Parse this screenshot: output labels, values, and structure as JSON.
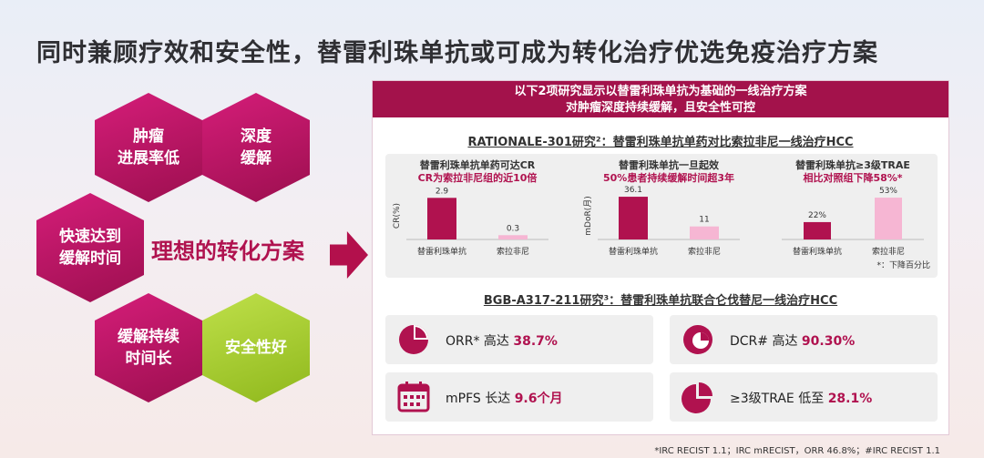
{
  "title": "同时兼顾疗效和安全性，替雷利珠单抗或可成为转化治疗优选免疫治疗方案",
  "hexes": [
    {
      "text": "肿瘤\n进展率低",
      "color": "magenta"
    },
    {
      "text": "深度\n缓解",
      "color": "magenta"
    },
    {
      "text": "快速达到\n缓解时间",
      "color": "magenta"
    },
    {
      "text": "缓解持续\n时间长",
      "color": "magenta"
    },
    {
      "text": "安全性好",
      "color": "green"
    }
  ],
  "ideal_label": "理想的转化方案",
  "banner": {
    "line1": "以下2项研究显示以替雷利珠单抗为基础的一线治疗方案",
    "line2": "对肿瘤深度持续缓解，且安全性可控"
  },
  "study1_title": "RATIONALE-301研究²：替雷利珠单抗单药对比索拉非尼一线治疗HCC",
  "study2_title": "BGB-A317-211研究³：替雷利珠单抗联合仑伐替尼一线治疗HCC",
  "chart_data": [
    {
      "type": "bar",
      "title": "替雷利珠单抗单药可达CR",
      "subtitle": "CR为索拉非尼组的近10倍",
      "ylabel": "CR(%)",
      "categories": [
        "替雷利珠单抗",
        "索拉非尼"
      ],
      "values": [
        2.9,
        0.3
      ],
      "value_labels": [
        "2.9",
        "0.3"
      ],
      "ylim": [
        0,
        3.3
      ]
    },
    {
      "type": "bar",
      "title": "替雷利珠单抗一旦起效",
      "subtitle": "50%患者持续缓解时间超3年",
      "ylabel": "mDoR(月)",
      "categories": [
        "替雷利珠单抗",
        "索拉非尼"
      ],
      "values": [
        36.1,
        11
      ],
      "value_labels": [
        "36.1",
        "11"
      ],
      "ylim": [
        0,
        40
      ]
    },
    {
      "type": "bar",
      "title": "替雷利珠单抗≥3级TRAE",
      "subtitle": "相比对照组下降58%*",
      "ylabel": "",
      "categories": [
        "替雷利珠单抗",
        "索拉非尼"
      ],
      "values": [
        22,
        53
      ],
      "value_labels": [
        "22%",
        "53%"
      ],
      "ylim": [
        0,
        60
      ]
    }
  ],
  "chart_note": "*：下降百分比",
  "stats": [
    {
      "label": "ORR* 高达 ",
      "value": "38.7%",
      "icon": "pie-chart-icon"
    },
    {
      "label": "DCR# 高达 ",
      "value": "90.30%",
      "icon": "donut-chart-icon"
    },
    {
      "label": "mPFS 长达 ",
      "value": "9.6个月",
      "icon": "calendar-icon"
    },
    {
      "label": "≥3级TRAE 低至 ",
      "value": "28.1%",
      "icon": "pie-slice-icon"
    }
  ],
  "footnote": "*IRC RECIST 1.1；IRC mRECIST，ORR 46.8%；#IRC RECIST 1.1",
  "colors": {
    "magenta": "#b0124f",
    "pink": "#f6b6d3",
    "green": "#a6cc2e"
  }
}
